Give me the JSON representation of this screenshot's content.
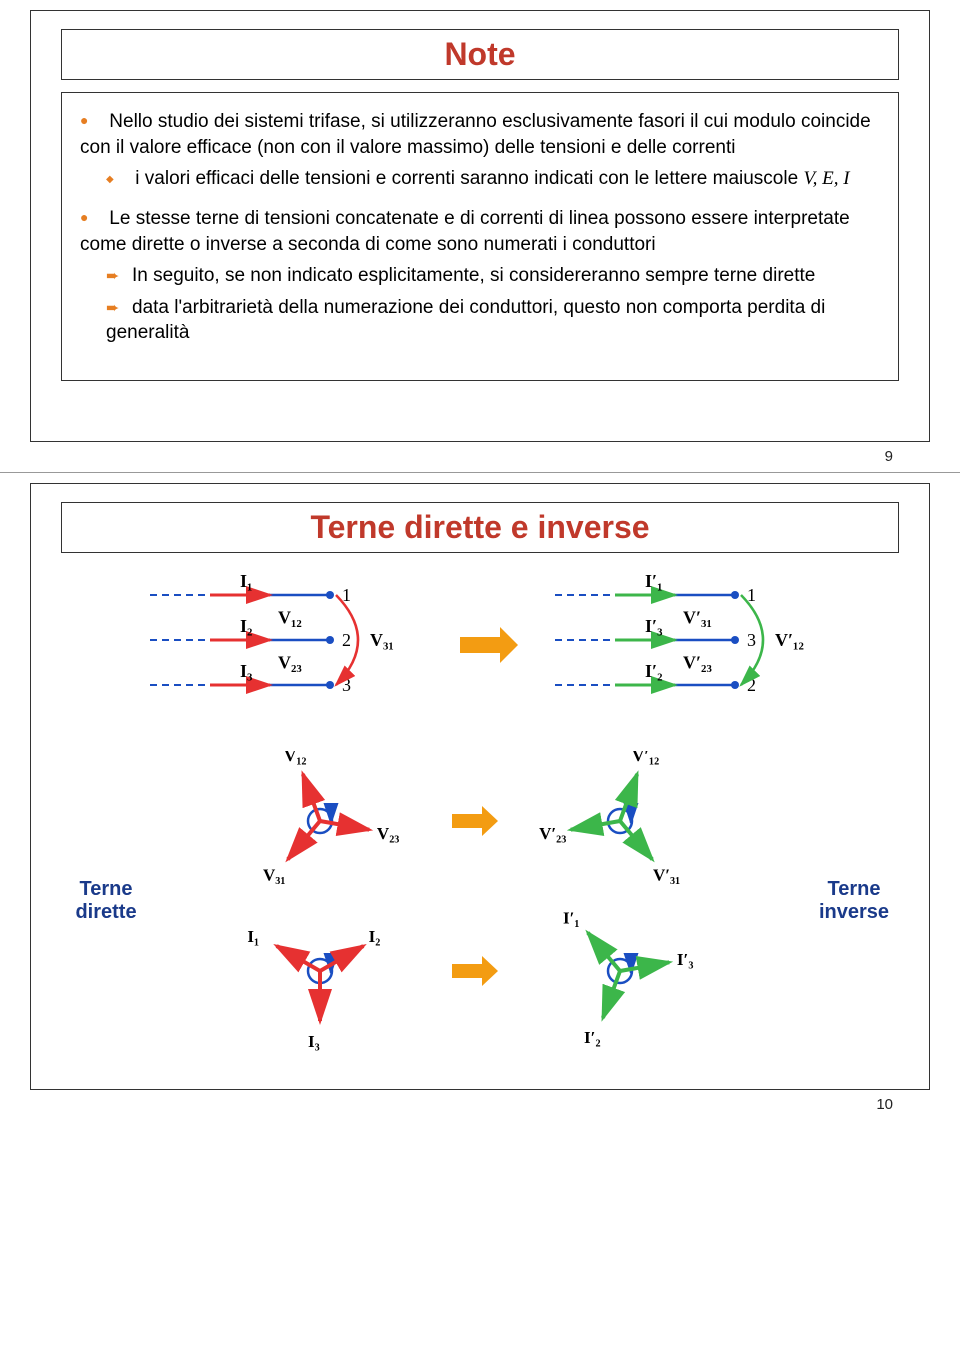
{
  "slide1": {
    "title": "Note",
    "bullets": [
      {
        "text": "Nello studio dei sistemi trifase, si utilizzeranno esclusivamente fasori il cui modulo coincide con il valore efficace (non con il valore massimo) delle tensioni e delle correnti",
        "sub": [
          {
            "prefix": "i valori efficaci delle tensioni e correnti saranno indicati con le lettere maiuscole ",
            "italic": "V, E, I"
          }
        ]
      },
      {
        "text": "Le stesse terne di tensioni concatenate e di correnti di linea possono essere interpretate come dirette o inverse a seconda di come sono numerati i conduttori",
        "arrows": [
          "In seguito, se non indicato esplicitamente, si considereranno sempre terne dirette",
          "data l'arbitrarietà della numerazione dei conduttori, questo non comporta perdita di generalità"
        ]
      }
    ],
    "page": "9"
  },
  "slide2": {
    "title": "Terne dirette e inverse",
    "left_label": "Terne dirette",
    "right_label": "Terne inverse",
    "page": "10",
    "colors": {
      "red": "#e63131",
      "green": "#3cb64a",
      "blue": "#1a4ec2",
      "orange": "#f39c12",
      "black": "#000000",
      "dash": "#1a4ec2"
    },
    "diagram1_left": {
      "lines": [
        "1",
        "2",
        "3"
      ],
      "I": [
        "I₁",
        "I₂",
        "I₃"
      ],
      "V": [
        "V₁₂",
        "V₂₃",
        "V₃₁"
      ],
      "arc_color": "#e63131"
    },
    "diagram1_right": {
      "lines": [
        "1",
        "3",
        "2"
      ],
      "I": [
        "I′₁",
        "I′₃",
        "I′₂"
      ],
      "V": [
        "V′₃₁",
        "V′₂₃",
        "V′₁₂"
      ],
      "arc_color": "#3cb64a"
    },
    "diagram2_left_V": {
      "labels": [
        "V₁₂",
        "V₂₃",
        "V₃₁"
      ],
      "color": "#e63131"
    },
    "diagram2_right_V": {
      "labels": [
        "V′₁₂",
        "V′₂₃",
        "V′₃₁"
      ],
      "color": "#3cb64a"
    },
    "diagram2_left_I": {
      "labels": [
        "I₁",
        "I₂",
        "I₃"
      ],
      "color": "#e63131"
    },
    "diagram2_right_I": {
      "labels": [
        "I′₁",
        "I′₂",
        "I′₃"
      ],
      "color": "#3cb64a"
    }
  }
}
